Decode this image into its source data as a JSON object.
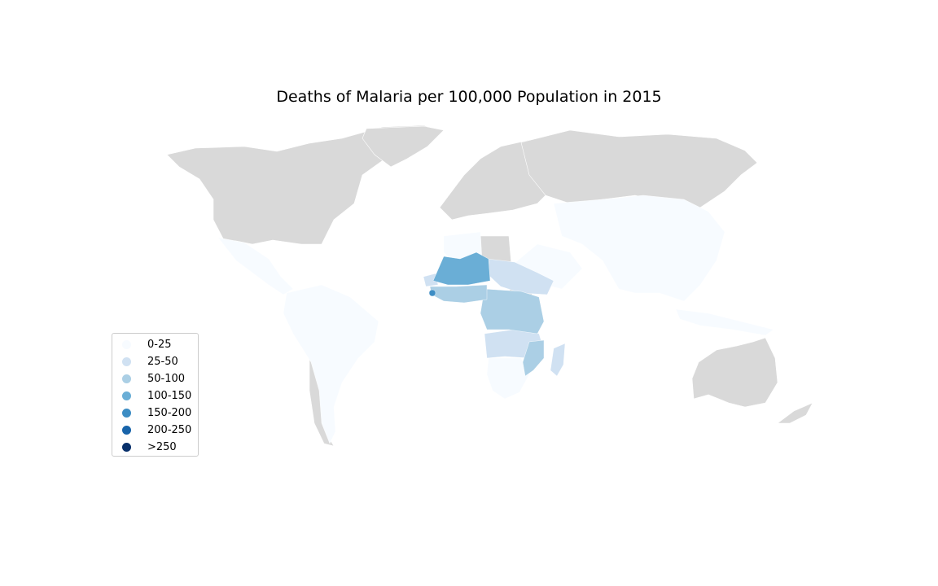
{
  "title": "Deaths of Malaria per 100,000 Population in 2015",
  "no_data_color": "#d9d9d9",
  "legend": [
    {
      "label": "0-25",
      "color": "#f7fbff"
    },
    {
      "label": "25-50",
      "color": "#d0e1f2"
    },
    {
      "label": "50-100",
      "color": "#abcfe5"
    },
    {
      "label": "100-150",
      "color": "#6aaed6"
    },
    {
      "label": "150-200",
      "color": "#3d8dc4"
    },
    {
      "label": "200-250",
      "color": "#1864aa"
    },
    {
      "label": ">250",
      "color": "#08306b"
    }
  ],
  "map_data": {
    "type": "choropleth",
    "metric": "malaria deaths per 100,000",
    "regions": [
      {
        "region": "Americas (tropical)",
        "bin": "0-25"
      },
      {
        "region": "Asia (south & south-east)",
        "bin": "0-25"
      },
      {
        "region": "North Africa & Arabia",
        "bin": "0-25"
      },
      {
        "region": "Southern Africa",
        "bin": "0-25"
      },
      {
        "region": "Sudan / Ethiopia",
        "bin": "25-50"
      },
      {
        "region": "Madagascar",
        "bin": "25-50"
      },
      {
        "region": "Angola / Zambia",
        "bin": "25-50"
      },
      {
        "region": "Central Africa",
        "bin": "50-100"
      },
      {
        "region": "West Africa coast",
        "bin": "50-100"
      },
      {
        "region": "Mozambique / Tanzania",
        "bin": "50-100"
      },
      {
        "region": "Mali / Niger / Burkina Faso",
        "bin": "100-150"
      },
      {
        "region": "Sierra Leone",
        "bin": "150-200"
      }
    ]
  }
}
